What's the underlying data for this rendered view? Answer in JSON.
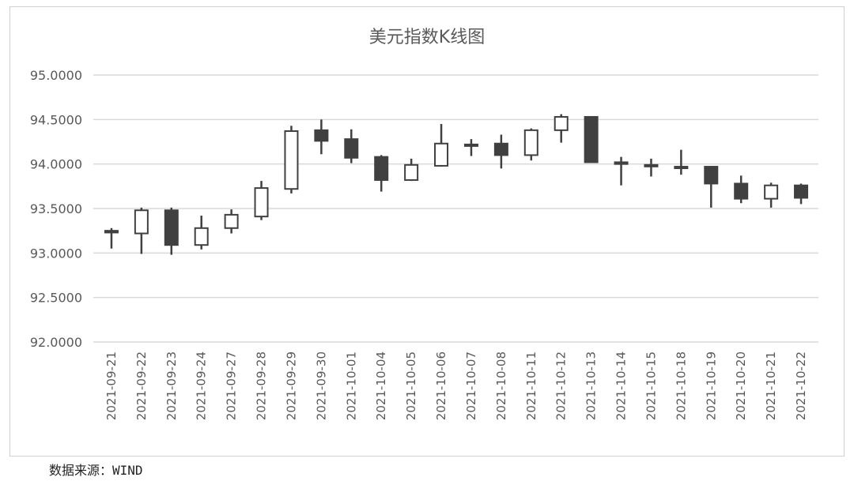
{
  "chart_data": {
    "type": "candlestick",
    "title": "美元指数K线图",
    "xlabel": "",
    "ylabel": "",
    "ylim": [
      92.0,
      95.0
    ],
    "yticks": [
      "92.0000",
      "92.5000",
      "93.0000",
      "93.5000",
      "94.0000",
      "94.5000",
      "95.0000"
    ],
    "grid": true,
    "legend": "none",
    "colors": {
      "up": "#ffffff",
      "down": "#404040",
      "outline": "#404040",
      "grid": "#d9d9d9"
    },
    "categories": [
      "2021-09-21",
      "2021-09-22",
      "2021-09-23",
      "2021-09-24",
      "2021-09-27",
      "2021-09-28",
      "2021-09-29",
      "2021-09-30",
      "2021-10-01",
      "2021-10-04",
      "2021-10-05",
      "2021-10-06",
      "2021-10-07",
      "2021-10-08",
      "2021-10-11",
      "2021-10-12",
      "2021-10-13",
      "2021-10-14",
      "2021-10-15",
      "2021-10-18",
      "2021-10-19",
      "2021-10-20",
      "2021-10-21",
      "2021-10-22"
    ],
    "open": [
      93.25,
      93.22,
      93.48,
      93.09,
      93.28,
      93.41,
      93.72,
      94.38,
      94.28,
      94.08,
      93.82,
      93.98,
      94.22,
      94.23,
      94.1,
      94.38,
      94.53,
      94.02,
      93.99,
      93.97,
      93.97,
      93.78,
      93.61,
      93.76
    ],
    "high": [
      93.28,
      93.51,
      93.51,
      93.42,
      93.49,
      93.81,
      94.43,
      94.5,
      94.39,
      94.1,
      94.06,
      94.45,
      94.28,
      94.33,
      94.4,
      94.56,
      94.53,
      94.08,
      94.06,
      94.16,
      93.97,
      93.87,
      93.79,
      93.78
    ],
    "low": [
      93.05,
      92.99,
      92.98,
      93.04,
      93.22,
      93.37,
      93.67,
      94.11,
      94.01,
      93.69,
      93.81,
      93.97,
      94.09,
      93.95,
      94.04,
      94.24,
      94.02,
      93.76,
      93.86,
      93.88,
      93.51,
      93.56,
      93.51,
      93.55
    ],
    "close": [
      93.23,
      93.48,
      93.09,
      93.28,
      93.43,
      93.73,
      94.37,
      94.26,
      94.07,
      93.82,
      93.99,
      94.23,
      94.21,
      94.1,
      94.38,
      94.53,
      94.02,
      94.0,
      93.98,
      93.96,
      93.78,
      93.61,
      93.76,
      93.62
    ]
  },
  "footer": {
    "source": "数据来源：WIND"
  }
}
